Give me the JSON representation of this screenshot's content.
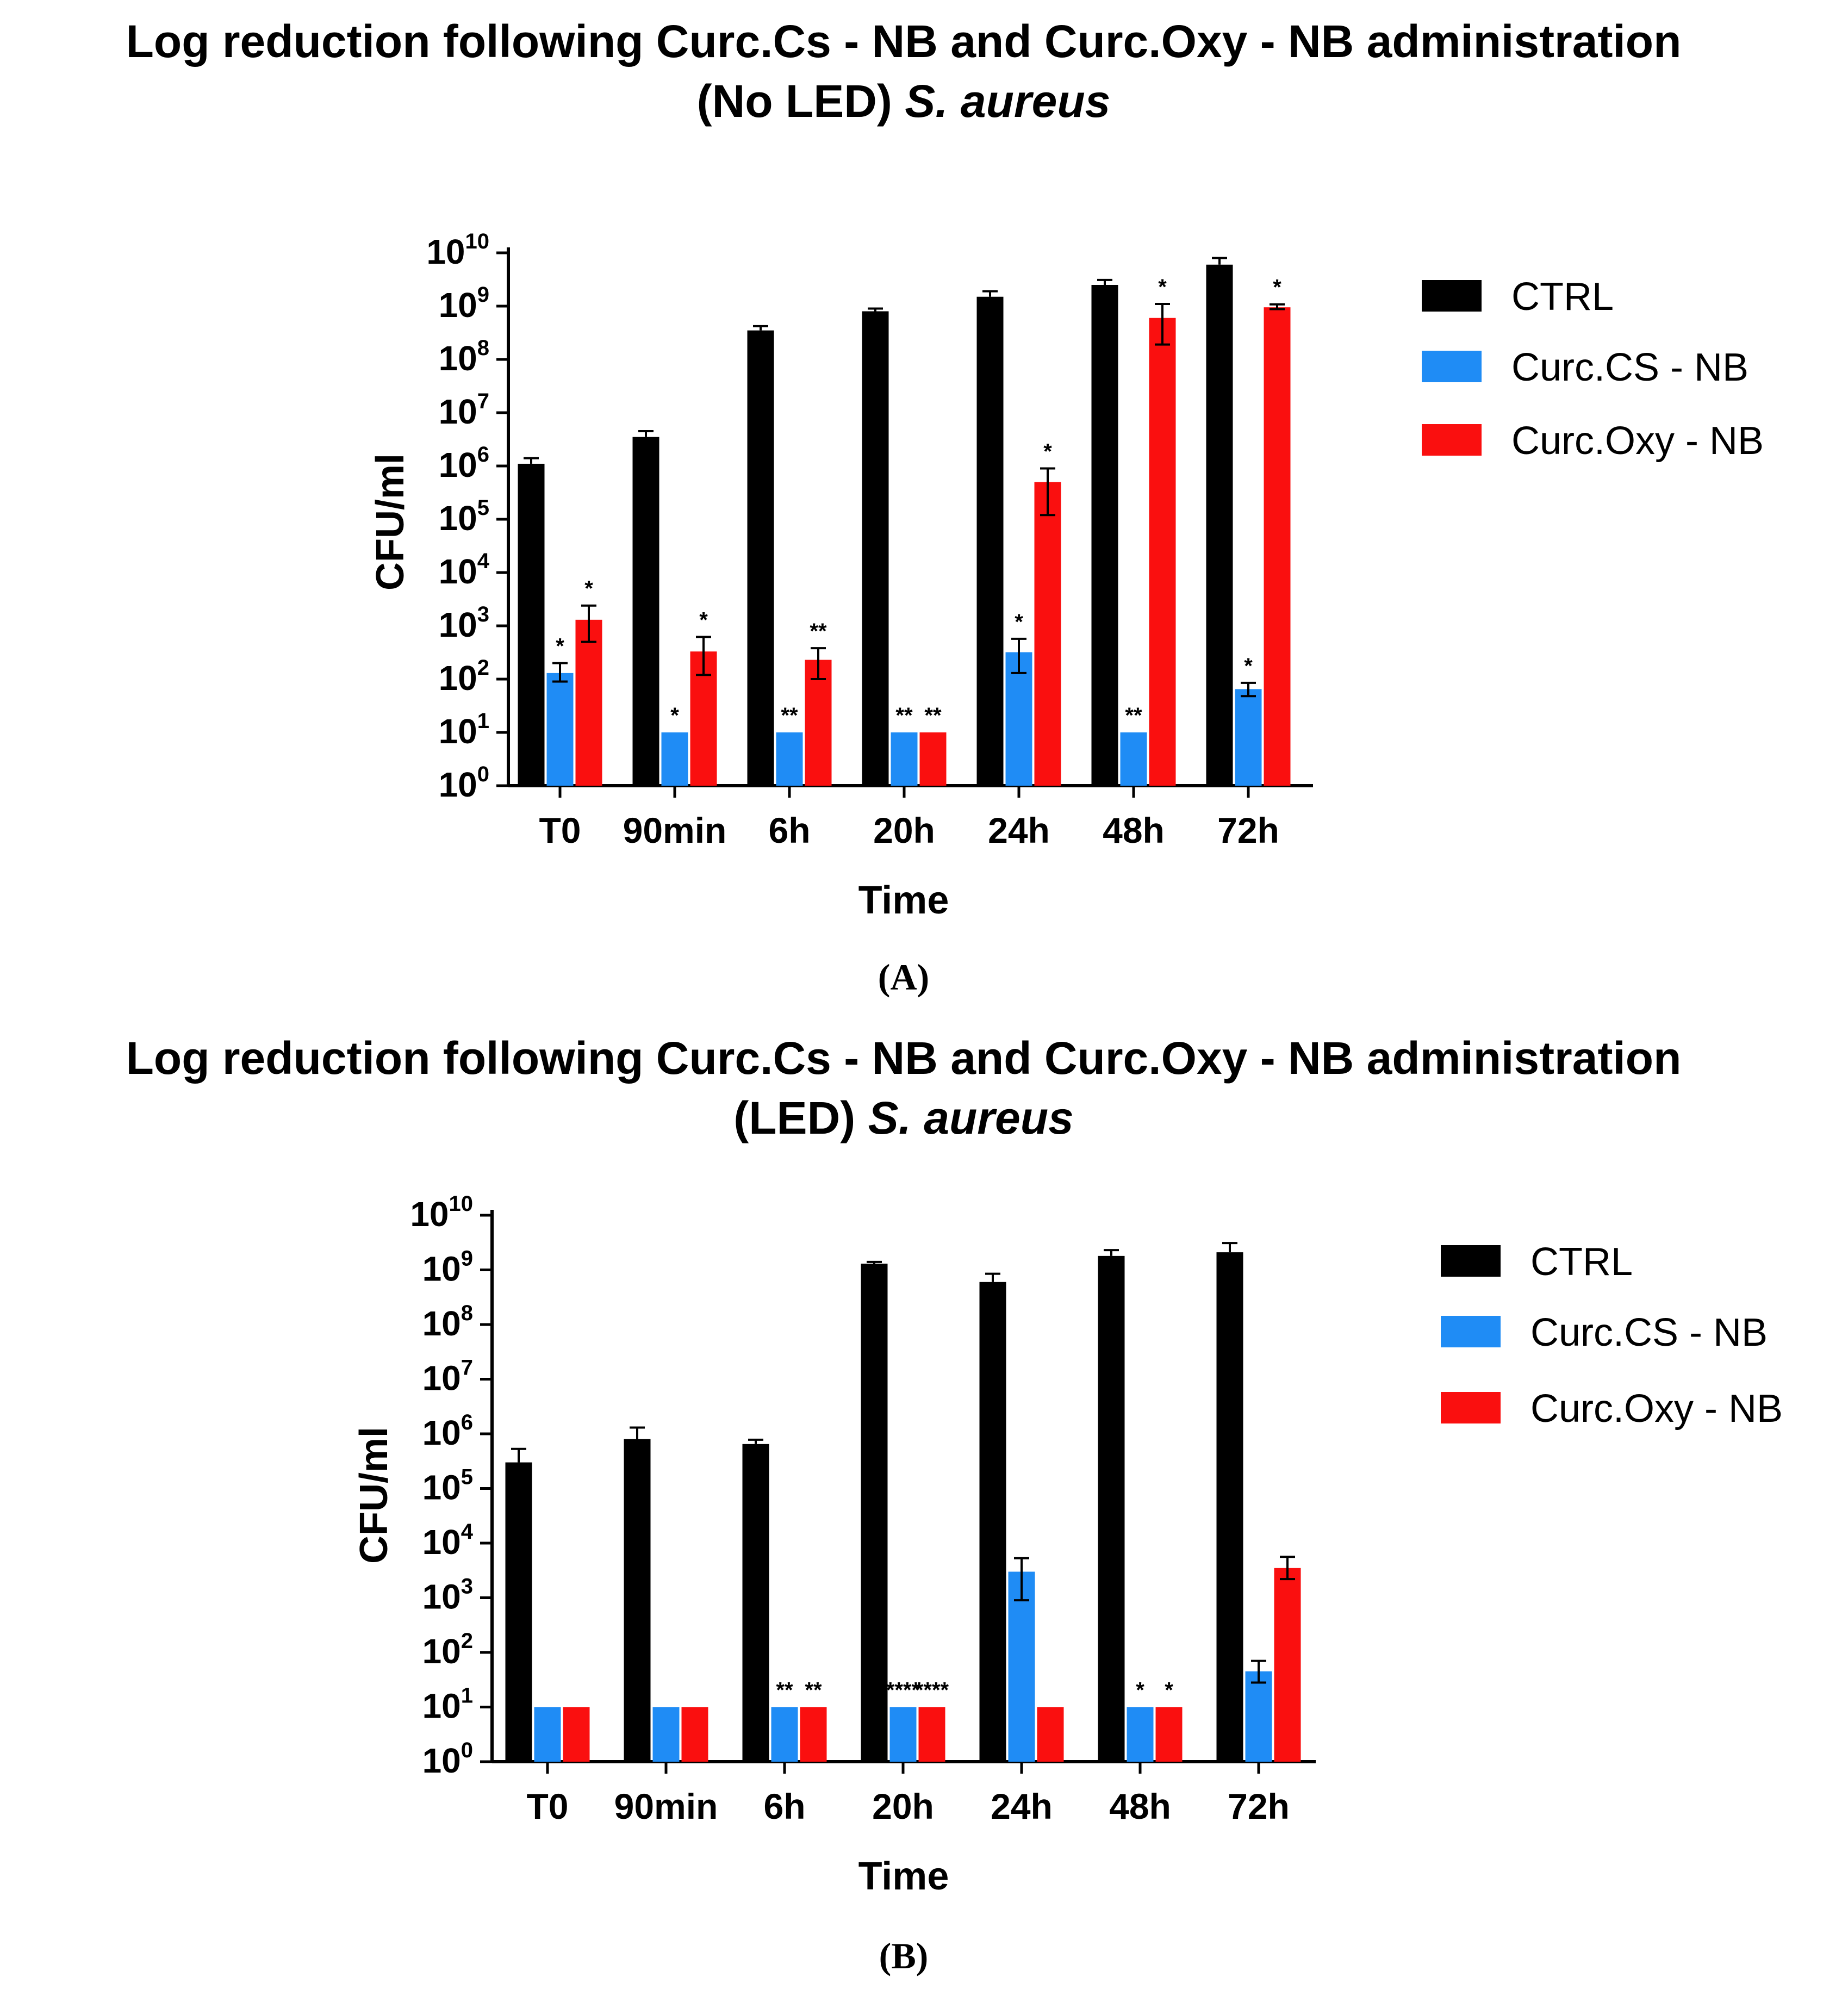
{
  "colors": {
    "CTRL": "#000000",
    "Curc.CS - NB": "#1f8cf5",
    "Curc.Oxy - NB": "#fa0f0f"
  },
  "chart_data": [
    {
      "type": "bar",
      "panel": "(A)",
      "title_line1": "Log reduction following Curc.Cs - NB and Curc.Oxy - NB administration",
      "title_line2_prefix": "(No LED) ",
      "title_line2_italic": "S. aureus",
      "xlabel": "Time",
      "ylabel": "CFU/ml",
      "yscale": "log",
      "ylim": [
        1,
        10000000000
      ],
      "yticks": [
        {
          "base": "10",
          "exp": "0"
        },
        {
          "base": "10",
          "exp": "1"
        },
        {
          "base": "10",
          "exp": "2"
        },
        {
          "base": "10",
          "exp": "3"
        },
        {
          "base": "10",
          "exp": "4"
        },
        {
          "base": "10",
          "exp": "5"
        },
        {
          "base": "10",
          "exp": "6"
        },
        {
          "base": "10",
          "exp": "7"
        },
        {
          "base": "10",
          "exp": "8"
        },
        {
          "base": "10",
          "exp": "9"
        },
        {
          "base": "10",
          "exp": "10"
        }
      ],
      "categories": [
        "T0",
        "90min",
        "6h",
        "20h",
        "24h",
        "48h",
        "72h"
      ],
      "legend": [
        "CTRL",
        "Curc.CS - NB",
        "Curc.Oxy - NB"
      ],
      "legend_position": "right",
      "series": [
        {
          "name": "CTRL",
          "values": [
            1100000,
            3500000,
            350000000,
            800000000,
            1500000000,
            2500000000,
            6000000000
          ],
          "err_high": [
            1400000,
            4500000,
            420000000,
            900000000,
            1900000000,
            3100000000,
            8000000000
          ],
          "err_low": [
            1100000,
            3500000,
            350000000,
            800000000,
            1500000000,
            2500000000,
            6000000000
          ],
          "sig": [
            "",
            "",
            "",
            "",
            "",
            "",
            ""
          ]
        },
        {
          "name": "Curc.CS - NB",
          "values": [
            130,
            10,
            10,
            10,
            320,
            10,
            65
          ],
          "err_high": [
            200,
            10,
            10,
            10,
            570,
            10,
            85
          ],
          "err_low": [
            90,
            10,
            10,
            10,
            130,
            10,
            48
          ],
          "sig": [
            "*",
            "*",
            "**",
            "**",
            "*",
            "**",
            "*"
          ]
        },
        {
          "name": "Curc.Oxy - NB",
          "values": [
            1300,
            330,
            230,
            10,
            500000,
            600000000,
            950000000
          ],
          "err_high": [
            2400,
            620,
            380,
            10,
            900000,
            1100000000,
            1080000000
          ],
          "err_low": [
            500,
            120,
            100,
            10,
            120000,
            190000000,
            880000000
          ],
          "sig": [
            "*",
            "*",
            "**",
            "**",
            "*",
            "*",
            "*"
          ]
        }
      ]
    },
    {
      "type": "bar",
      "panel": "(B)",
      "title_line1": "Log reduction following Curc.Cs - NB and Curc.Oxy - NB administration",
      "title_line2_prefix": "(LED) ",
      "title_line2_italic": "S. aureus",
      "xlabel": "Time",
      "ylabel": "CFU/ml",
      "yscale": "log",
      "ylim": [
        1,
        10000000000
      ],
      "yticks": [
        {
          "base": "10",
          "exp": "0"
        },
        {
          "base": "10",
          "exp": "1"
        },
        {
          "base": "10",
          "exp": "2"
        },
        {
          "base": "10",
          "exp": "3"
        },
        {
          "base": "10",
          "exp": "4"
        },
        {
          "base": "10",
          "exp": "5"
        },
        {
          "base": "10",
          "exp": "6"
        },
        {
          "base": "10",
          "exp": "7"
        },
        {
          "base": "10",
          "exp": "8"
        },
        {
          "base": "10",
          "exp": "9"
        },
        {
          "base": "10",
          "exp": "10"
        }
      ],
      "categories": [
        "T0",
        "90min",
        "6h",
        "20h",
        "24h",
        "48h",
        "72h"
      ],
      "legend": [
        "CTRL",
        "Curc.CS - NB",
        "Curc.Oxy - NB"
      ],
      "legend_position": "right",
      "series": [
        {
          "name": "CTRL",
          "values": [
            300000,
            800000,
            650000,
            1300000000,
            600000000,
            1800000000,
            2100000000
          ],
          "err_high": [
            530000,
            1300000,
            780000,
            1400000000,
            850000000,
            2300000000,
            3100000000
          ],
          "err_low": [
            300000,
            800000,
            650000,
            1300000000,
            600000000,
            1800000000,
            2100000000
          ],
          "sig": [
            "",
            "",
            "",
            "",
            "",
            "",
            ""
          ]
        },
        {
          "name": "Curc.CS - NB",
          "values": [
            10,
            10,
            10,
            10,
            3000,
            10,
            45
          ],
          "err_high": [
            10,
            10,
            10,
            10,
            5300,
            10,
            70
          ],
          "err_low": [
            10,
            10,
            10,
            10,
            900,
            10,
            28
          ],
          "sig": [
            "",
            "",
            "**",
            "****",
            "",
            "*",
            ""
          ]
        },
        {
          "name": "Curc.Oxy - NB",
          "values": [
            10,
            10,
            10,
            10,
            10,
            10,
            3500
          ],
          "err_high": [
            10,
            10,
            10,
            10,
            10,
            10,
            5600
          ],
          "err_low": [
            10,
            10,
            10,
            10,
            10,
            10,
            2200
          ],
          "sig": [
            "",
            "",
            "**",
            "****",
            "",
            "*",
            ""
          ]
        }
      ]
    }
  ]
}
